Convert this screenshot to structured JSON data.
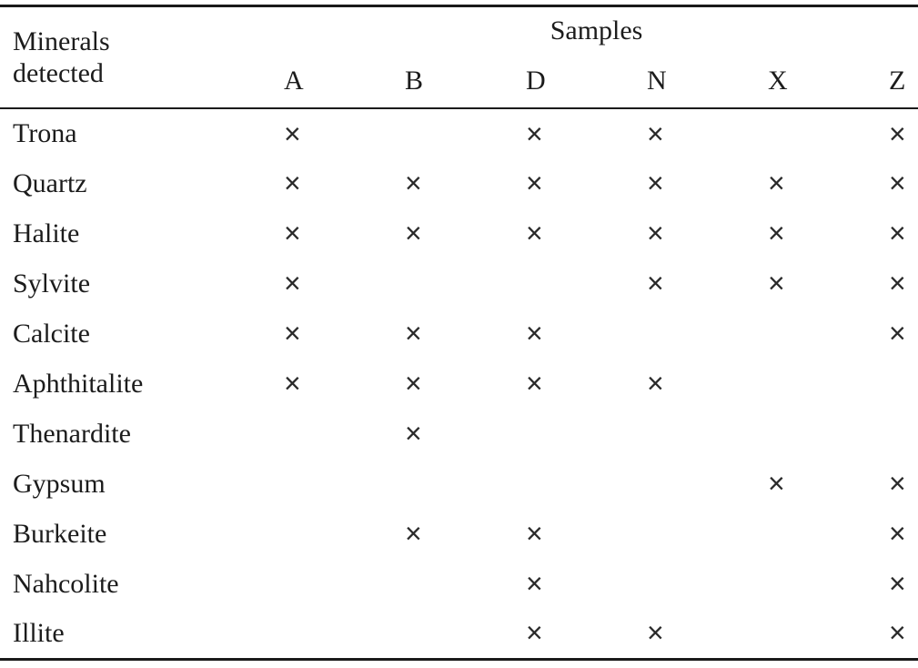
{
  "table": {
    "header": {
      "row_header": "Minerals detected",
      "group_header": "Samples",
      "columns": [
        "A",
        "B",
        "D",
        "N",
        "X",
        "Z"
      ]
    },
    "mark_glyph": "×",
    "rows": [
      {
        "mineral": "Trona",
        "marks": [
          true,
          false,
          true,
          true,
          false,
          true
        ]
      },
      {
        "mineral": "Quartz",
        "marks": [
          true,
          true,
          true,
          true,
          true,
          true
        ]
      },
      {
        "mineral": "Halite",
        "marks": [
          true,
          true,
          true,
          true,
          true,
          true
        ]
      },
      {
        "mineral": "Sylvite",
        "marks": [
          true,
          false,
          false,
          true,
          true,
          true
        ]
      },
      {
        "mineral": "Calcite",
        "marks": [
          true,
          true,
          true,
          false,
          false,
          true
        ]
      },
      {
        "mineral": "Aphthitalite",
        "marks": [
          true,
          true,
          true,
          true,
          false,
          false
        ]
      },
      {
        "mineral": "Thenardite",
        "marks": [
          false,
          true,
          false,
          false,
          false,
          false
        ]
      },
      {
        "mineral": "Gypsum",
        "marks": [
          false,
          false,
          false,
          false,
          true,
          true
        ]
      },
      {
        "mineral": "Burkeite",
        "marks": [
          false,
          true,
          true,
          false,
          false,
          true
        ]
      },
      {
        "mineral": "Nahcolite",
        "marks": [
          false,
          false,
          true,
          false,
          false,
          true
        ]
      },
      {
        "mineral": "Illite",
        "marks": [
          false,
          false,
          true,
          true,
          false,
          true
        ]
      }
    ],
    "colors": {
      "text": "#1c1c1c",
      "rule": "#1a1a1a",
      "background": "#ffffff"
    }
  }
}
